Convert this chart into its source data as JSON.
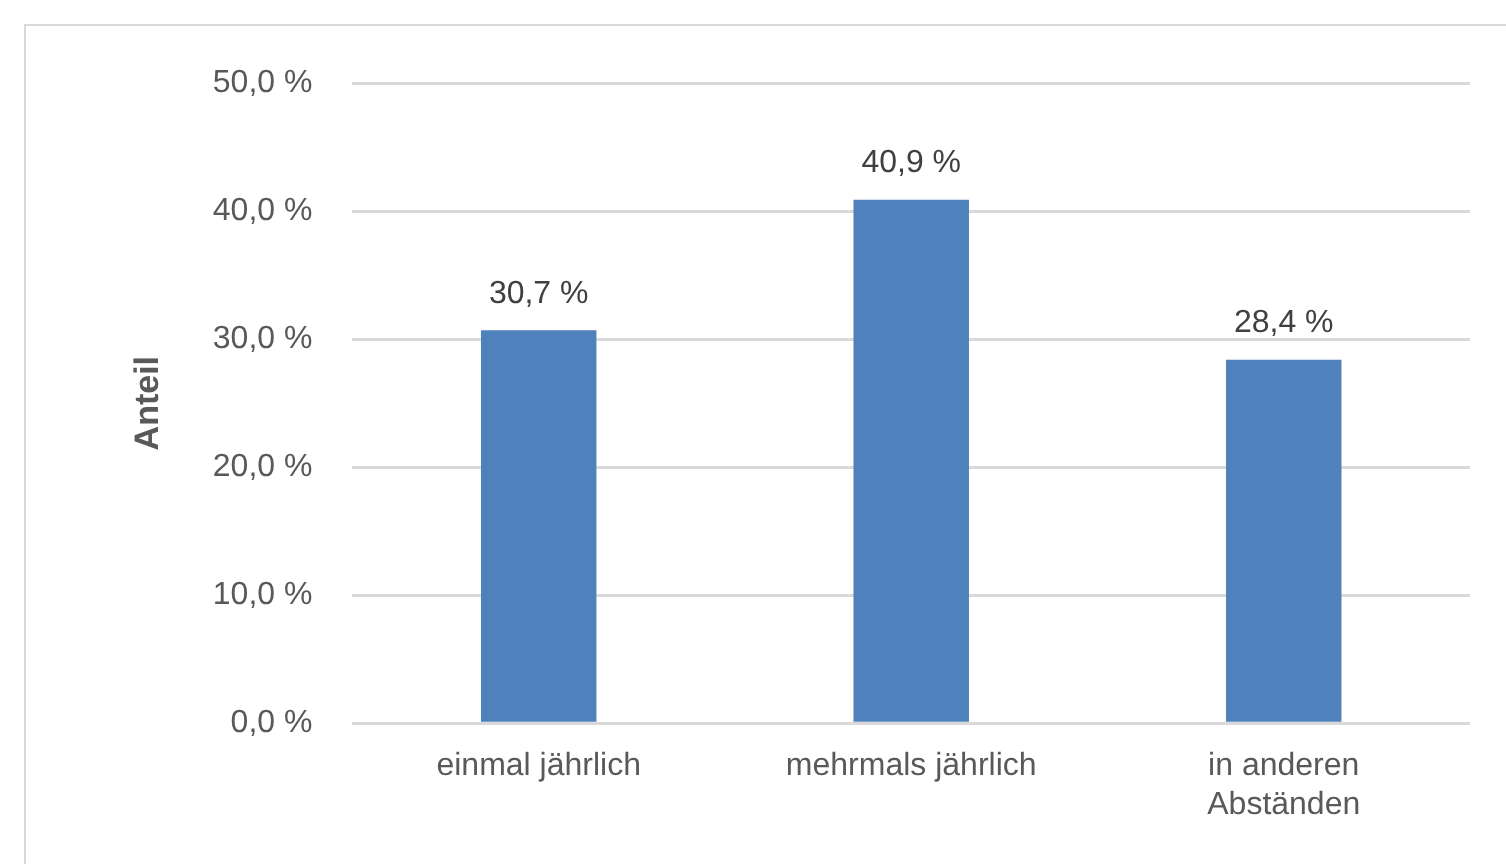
{
  "chart_data": {
    "type": "bar",
    "ylabel": "Anteil",
    "categories": [
      "einmal jährlich",
      "mehrmals jährlich",
      "in anderen Abständen"
    ],
    "values": [
      30.7,
      40.9,
      28.4
    ],
    "color": "#4f81bd",
    "value_labels": [
      "30,7 %",
      "40,9 %",
      "28,4 %"
    ],
    "ylim": [
      0,
      50
    ],
    "yticks": [
      {
        "value": 0,
        "label": "0,0 %"
      },
      {
        "value": 10,
        "label": "10,0 %"
      },
      {
        "value": 20,
        "label": "20,0 %"
      },
      {
        "value": 30,
        "label": "30,0 %"
      },
      {
        "value": 40,
        "label": "40,0 %"
      },
      {
        "value": 50,
        "label": "50,0 %"
      }
    ],
    "grid": "y",
    "legend": false
  }
}
